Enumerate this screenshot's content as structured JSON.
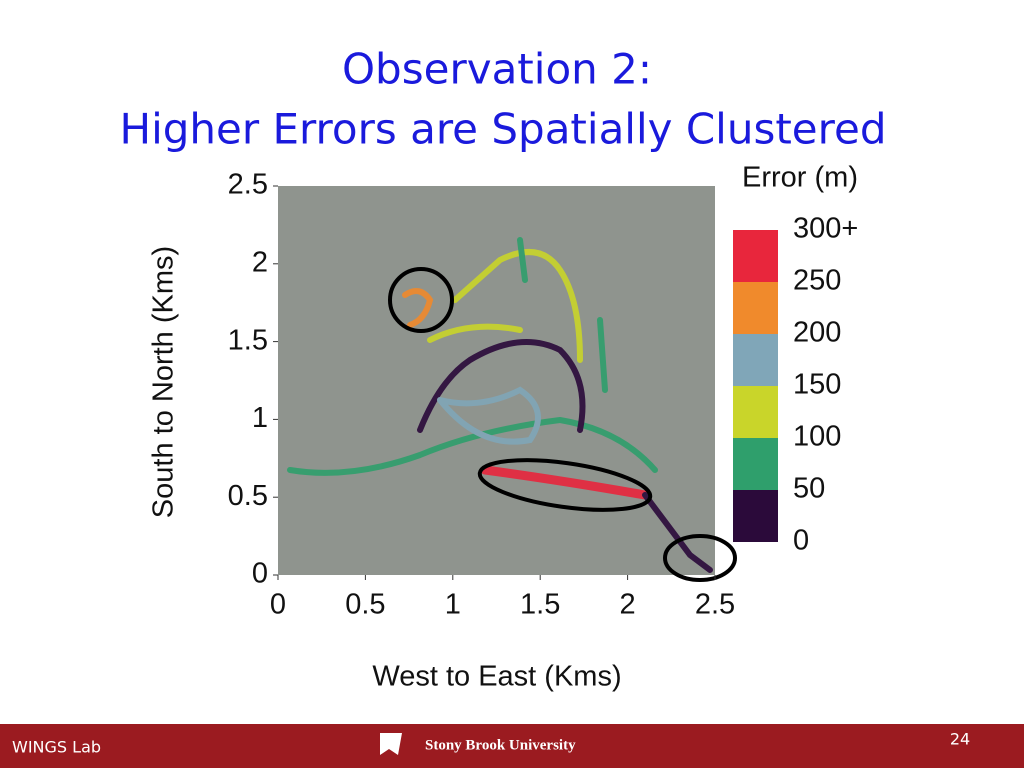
{
  "slide": {
    "title_lines": [
      "Observation 2:",
      "Higher Errors are Spatially Clustered"
    ],
    "footer_left": "WINGS Lab",
    "footer_center": "Stony Brook University",
    "page_number": "24"
  },
  "figure": {
    "xlabel": "West to East (Kms)",
    "ylabel": "South to North (Kms)",
    "xlim": [
      0,
      2.5
    ],
    "ylim": [
      0,
      2.5
    ],
    "xticks": [
      0,
      0.5,
      1,
      1.5,
      2,
      2.5
    ],
    "yticks": [
      0,
      0.5,
      1,
      1.5,
      2,
      2.5
    ],
    "colorbar": {
      "title": "Error (m)",
      "lim": [
        0,
        300
      ],
      "ticks": [
        0,
        50,
        100,
        150,
        200,
        250,
        {
          "value": 300,
          "label": "300+"
        }
      ],
      "colors": [
        "#2b0a3a",
        "#2f9f6c",
        "#c9d52a",
        "#80a6b8",
        "#f08a2c",
        "#e8263c"
      ]
    }
  }
}
